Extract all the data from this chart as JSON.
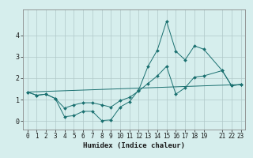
{
  "xlabel": "Humidex (Indice chaleur)",
  "background_color": "#d6eeed",
  "grid_color": "#b0c8c8",
  "line_color": "#1a7070",
  "xlim": [
    -0.5,
    23.5
  ],
  "ylim": [
    -0.4,
    5.2
  ],
  "yticks": [
    0,
    1,
    2,
    3,
    4
  ],
  "series": [
    {
      "x": [
        0,
        1,
        2,
        3,
        4,
        5,
        6,
        7,
        8,
        9,
        10,
        11,
        12,
        13,
        14,
        15,
        16,
        17,
        18,
        19,
        21,
        22,
        23
      ],
      "y": [
        1.35,
        1.2,
        1.25,
        1.05,
        0.2,
        0.25,
        0.45,
        0.45,
        0.02,
        0.05,
        0.65,
        0.9,
        1.45,
        2.55,
        3.3,
        4.65,
        3.25,
        2.85,
        3.5,
        3.35,
        2.35,
        1.65,
        1.7
      ],
      "has_markers": true
    },
    {
      "x": [
        0,
        1,
        2,
        3,
        4,
        5,
        6,
        7,
        8,
        9,
        10,
        11,
        12,
        13,
        14,
        15,
        16,
        17,
        18,
        19,
        21,
        22,
        23
      ],
      "y": [
        1.35,
        1.2,
        1.25,
        1.05,
        0.6,
        0.75,
        0.85,
        0.85,
        0.75,
        0.65,
        0.95,
        1.1,
        1.4,
        1.75,
        2.1,
        2.55,
        1.25,
        1.55,
        2.05,
        2.1,
        2.35,
        1.65,
        1.7
      ],
      "has_markers": true
    },
    {
      "x": [
        0,
        23
      ],
      "y": [
        1.35,
        1.7
      ],
      "has_markers": false
    }
  ],
  "xtick_positions": [
    0,
    1,
    2,
    3,
    4,
    5,
    6,
    7,
    8,
    9,
    10,
    11,
    12,
    13,
    14,
    15,
    16,
    17,
    18,
    19,
    21,
    22,
    23
  ],
  "xtick_labels": [
    "0",
    "1",
    "2",
    "3",
    "4",
    "5",
    "6",
    "7",
    "8",
    "9",
    "10",
    "11",
    "12",
    "13",
    "14",
    "15",
    "16",
    "17",
    "18",
    "19",
    "21",
    "22",
    "23"
  ]
}
